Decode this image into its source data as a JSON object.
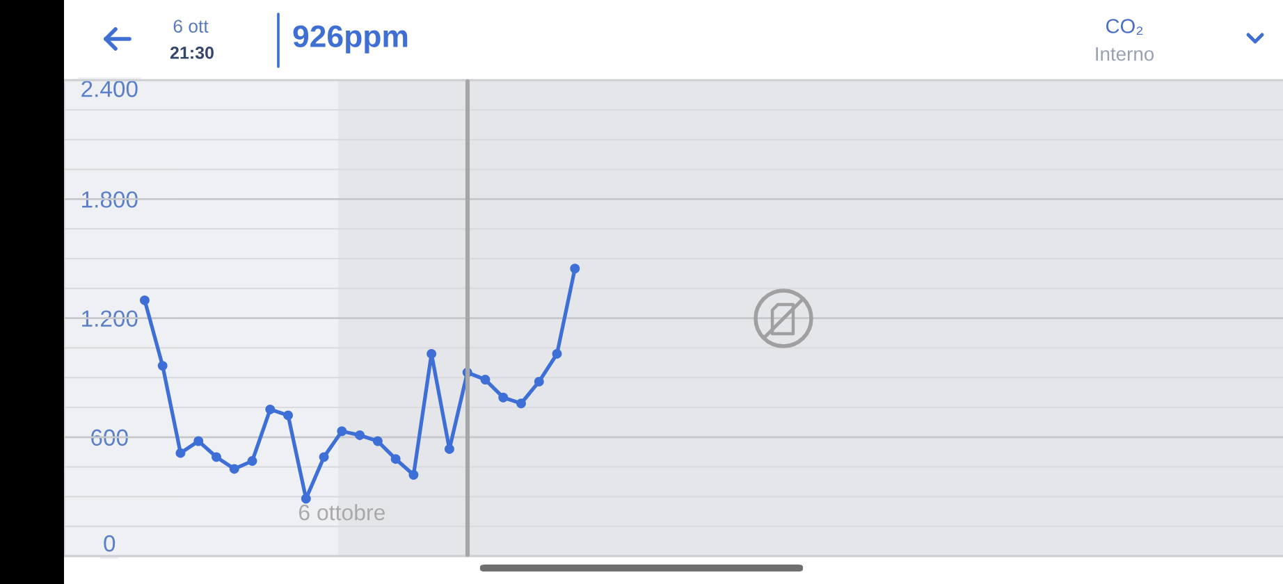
{
  "chart_data": {
    "type": "line",
    "title": "926ppm",
    "annotations": [
      "6 ott",
      "21:30",
      "CO₂",
      "Interno"
    ],
    "categories": [
      null,
      null,
      null,
      null,
      null,
      null,
      null,
      null,
      null,
      null,
      null,
      null,
      null,
      null,
      null,
      "6 ottobre",
      null,
      null,
      null,
      null,
      null,
      null,
      null,
      null,
      null,
      null,
      null,
      null,
      null,
      null,
      null,
      null,
      null,
      null,
      null,
      null,
      null,
      null,
      null,
      null,
      null,
      null,
      null,
      null,
      null,
      null,
      null,
      null,
      null,
      null,
      null,
      null,
      null,
      null,
      null,
      null,
      null,
      null,
      null,
      null,
      null,
      null,
      null,
      null,
      null,
      null,
      null,
      null
    ],
    "series": [
      {
        "color": "#3d6fd6",
        "values": [
          null,
          null,
          null,
          null,
          1290,
          960,
          520,
          580,
          500,
          440,
          480,
          740,
          710,
          290,
          500,
          630,
          610,
          580,
          490,
          410,
          1020,
          540,
          926,
          890,
          800,
          770,
          880,
          1020,
          1450,
          null,
          null,
          null,
          null,
          null,
          null,
          null,
          null,
          null,
          null,
          null,
          null,
          null,
          null,
          null,
          null,
          null,
          null,
          null,
          null,
          null,
          null,
          null,
          null,
          null,
          null,
          null,
          null,
          null,
          null,
          null,
          null,
          null,
          null,
          null,
          null,
          null,
          null,
          null
        ]
      }
    ],
    "ylim": [
      0,
      2400
    ],
    "yticks": [
      {
        "value": 0,
        "label": "0"
      },
      {
        "value": 150,
        "label": null
      },
      {
        "value": 300,
        "label": null
      },
      {
        "value": 450,
        "label": null
      },
      {
        "value": 600,
        "label": "600"
      },
      {
        "value": 750,
        "label": null
      },
      {
        "value": 900,
        "label": null
      },
      {
        "value": 1050,
        "label": null
      },
      {
        "value": 1200,
        "label": "1.200"
      },
      {
        "value": 1350,
        "label": null
      },
      {
        "value": 1500,
        "label": null
      },
      {
        "value": 1650,
        "label": null
      },
      {
        "value": 1800,
        "label": "1.800"
      },
      {
        "value": 1950,
        "label": null
      },
      {
        "value": 2100,
        "label": null
      },
      {
        "value": 2250,
        "label": null
      },
      {
        "value": 2400,
        "label": "2.400"
      }
    ],
    "grid": "y",
    "marker": "circle",
    "line_style": "solid"
  }
}
